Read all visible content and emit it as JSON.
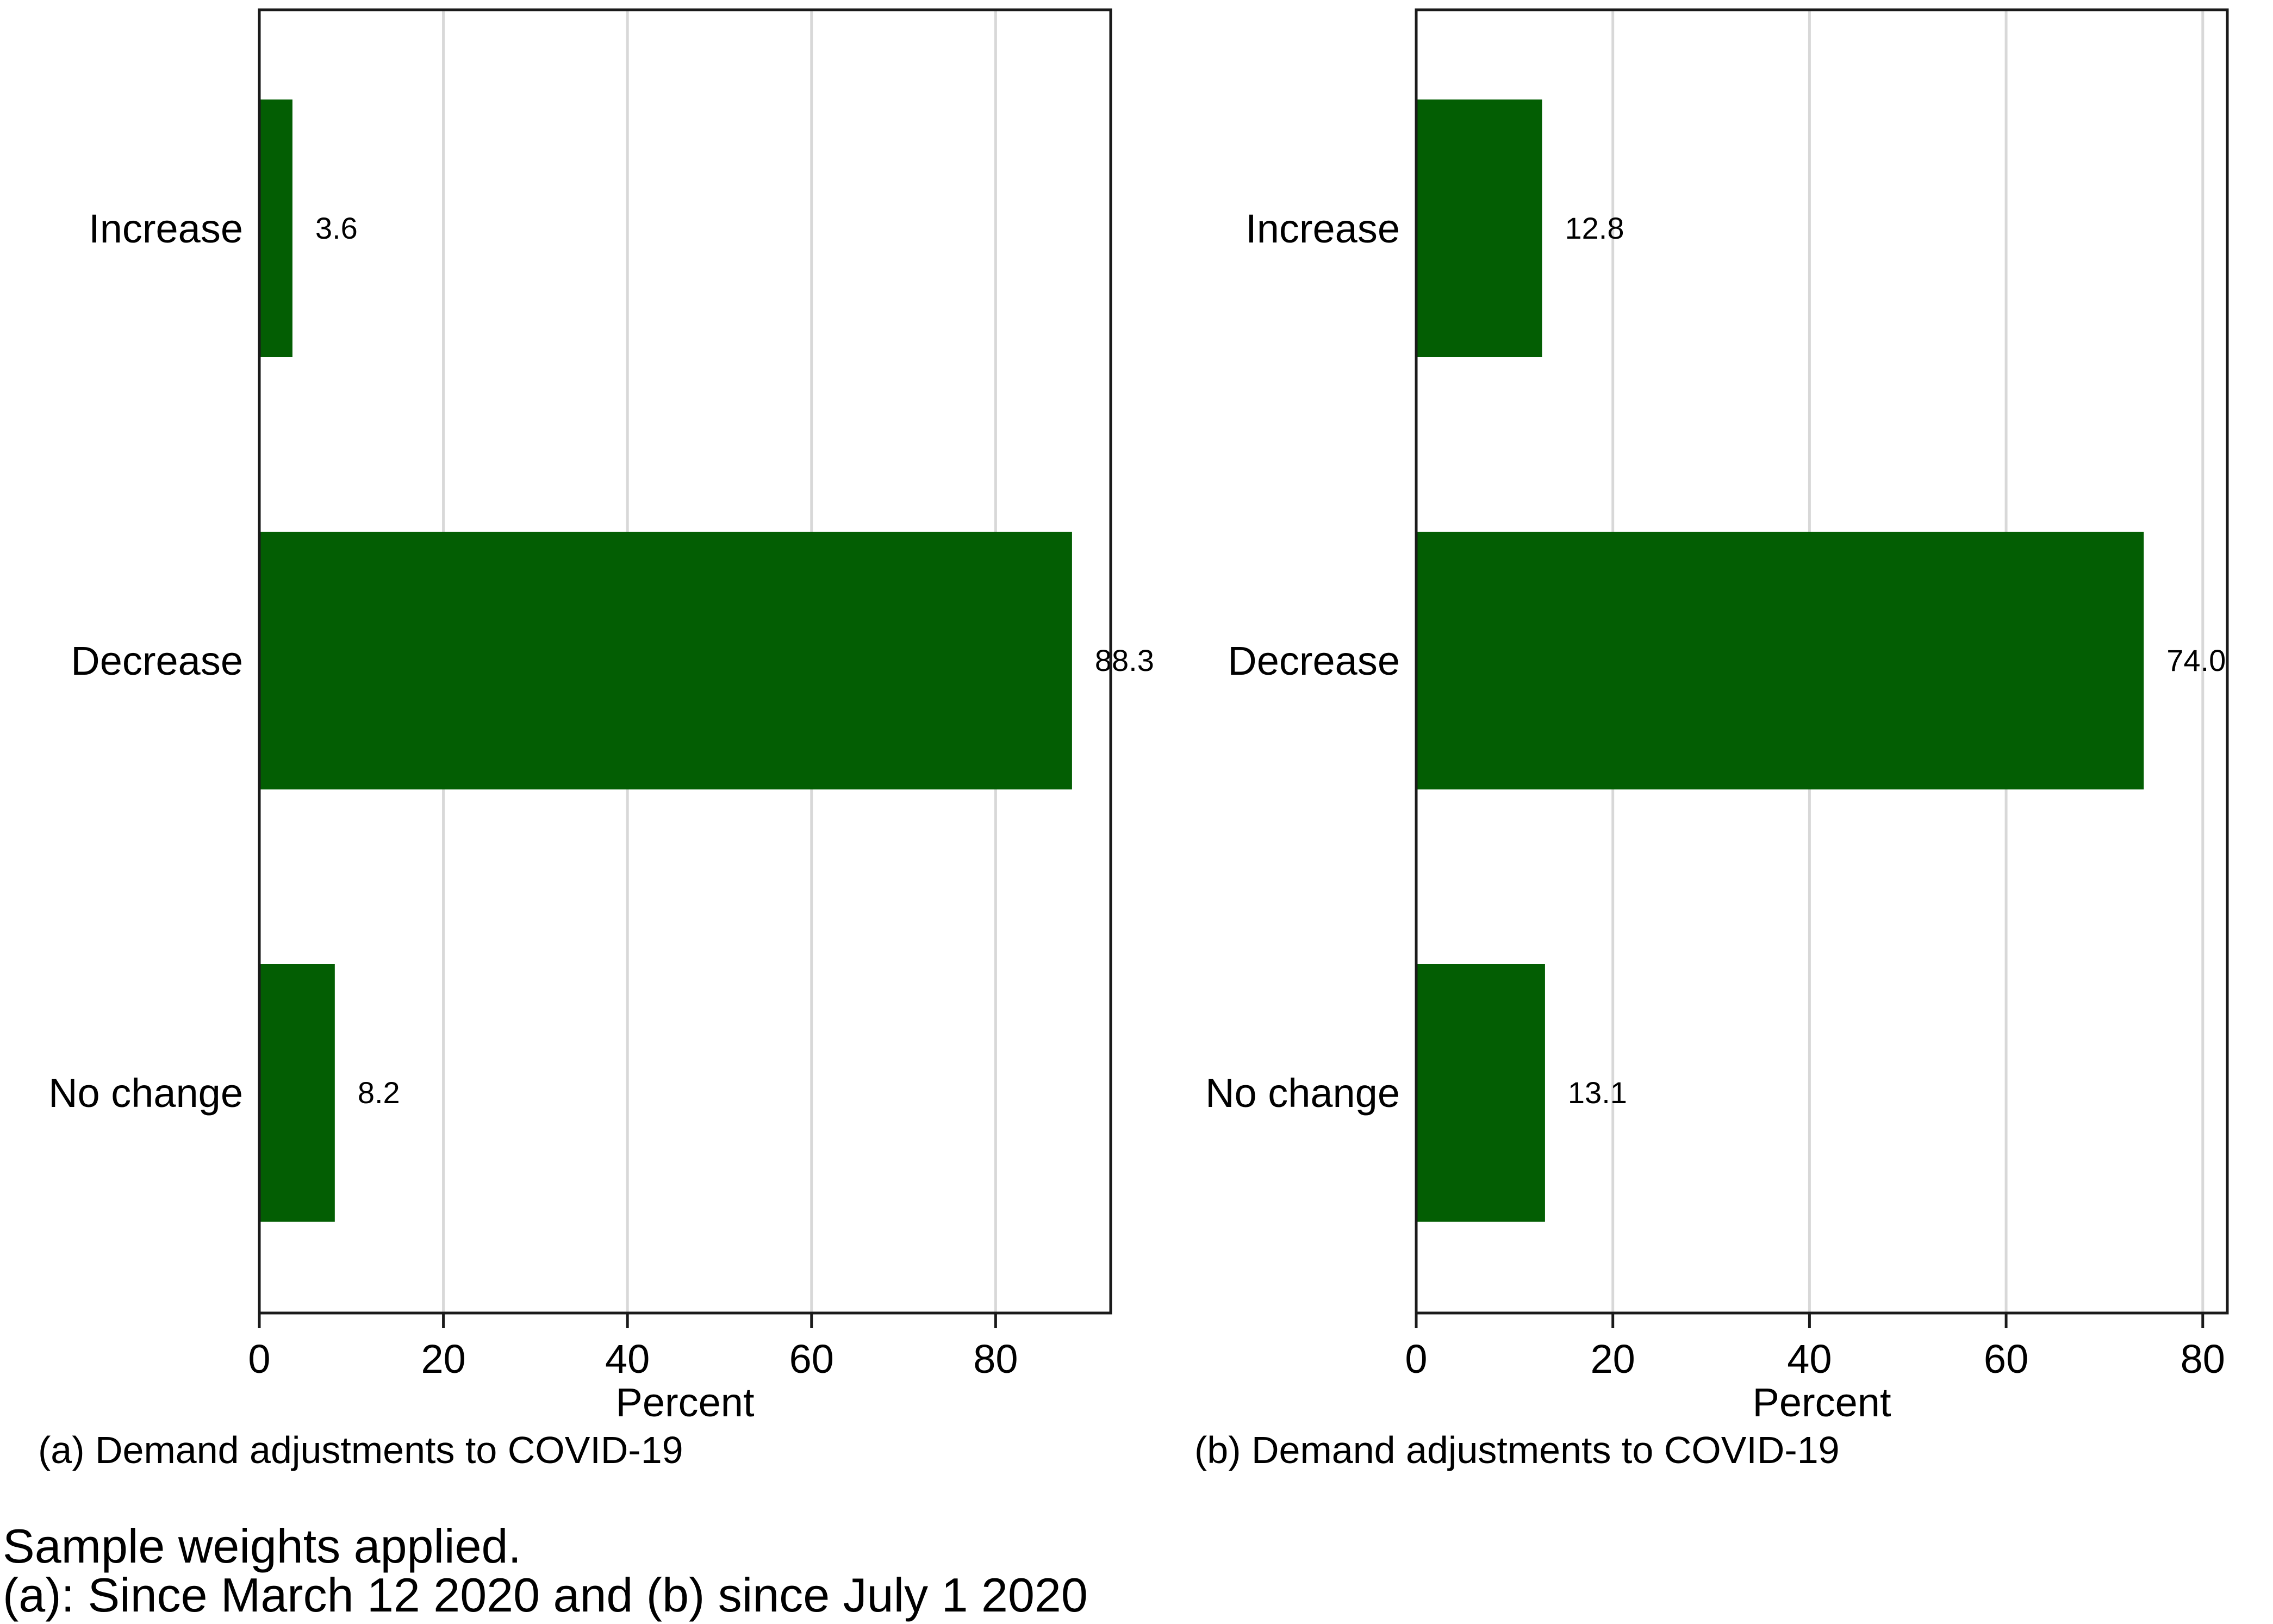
{
  "chart_data": [
    {
      "type": "bar",
      "orientation": "horizontal",
      "categories": [
        "Increase",
        "Decrease",
        "No change"
      ],
      "values": [
        3.6,
        88.3,
        8.2
      ],
      "value_labels": [
        "3.6",
        "88.3",
        "8.2"
      ],
      "xlabel": "Percent",
      "ylabel": "",
      "xlim": [
        0,
        92.5
      ],
      "xticks": [
        "0",
        "20",
        "40",
        "60",
        "80"
      ],
      "grid": true,
      "bar_color": "#035e03",
      "caption": "(a) Demand adjustments to COVID-19"
    },
    {
      "type": "bar",
      "orientation": "horizontal",
      "categories": [
        "Increase",
        "Decrease",
        "No change"
      ],
      "values": [
        12.8,
        74.0,
        13.1
      ],
      "value_labels": [
        "12.8",
        "74.0",
        "13.1"
      ],
      "xlabel": "Percent",
      "ylabel": "",
      "xlim": [
        0,
        82.5
      ],
      "xticks": [
        "0",
        "20",
        "40",
        "60",
        "80"
      ],
      "grid": true,
      "bar_color": "#035e03",
      "caption": "(b) Demand adjustments to COVID-19"
    }
  ],
  "notes": [
    "Sample weights applied.",
    "(a): Since March 12 2020 and (b) since July 1 2020"
  ]
}
